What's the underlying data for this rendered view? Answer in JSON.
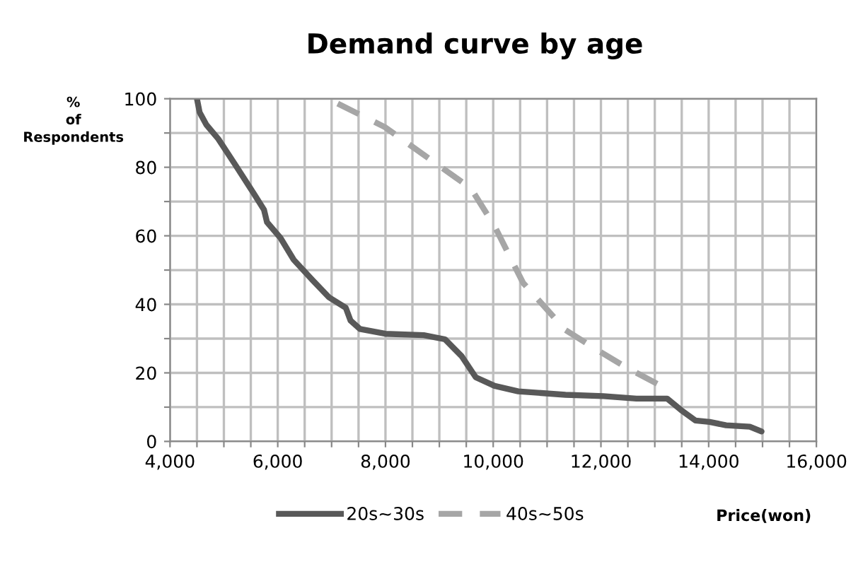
{
  "chart_data": {
    "type": "line",
    "title": "Demand curve by age",
    "xlabel": "Price(won)",
    "ylabel": "%\nof\nRespondents",
    "xlim": [
      4000,
      16000
    ],
    "ylim": [
      0,
      100
    ],
    "xticks": [
      {
        "value": 4000,
        "label": "4,000"
      },
      {
        "value": 4500,
        "label": null
      },
      {
        "value": 5000,
        "label": null
      },
      {
        "value": 5500,
        "label": null
      },
      {
        "value": 6000,
        "label": "6,000"
      },
      {
        "value": 6500,
        "label": null
      },
      {
        "value": 7000,
        "label": null
      },
      {
        "value": 7500,
        "label": null
      },
      {
        "value": 8000,
        "label": "8,000"
      },
      {
        "value": 8500,
        "label": null
      },
      {
        "value": 9000,
        "label": null
      },
      {
        "value": 9500,
        "label": null
      },
      {
        "value": 10000,
        "label": "10,000"
      },
      {
        "value": 10500,
        "label": null
      },
      {
        "value": 11000,
        "label": null
      },
      {
        "value": 11500,
        "label": null
      },
      {
        "value": 12000,
        "label": "12,000"
      },
      {
        "value": 12500,
        "label": null
      },
      {
        "value": 13000,
        "label": null
      },
      {
        "value": 13500,
        "label": null
      },
      {
        "value": 14000,
        "label": "14,000"
      },
      {
        "value": 14500,
        "label": null
      },
      {
        "value": 15000,
        "label": null
      },
      {
        "value": 15500,
        "label": null
      },
      {
        "value": 16000,
        "label": "16,000"
      }
    ],
    "yticks": [
      0,
      {
        "value": 10,
        "label": null
      },
      20,
      {
        "value": 30,
        "label": null
      },
      40,
      {
        "value": 50,
        "label": null
      },
      60,
      {
        "value": 70,
        "label": null
      },
      80,
      {
        "value": 90,
        "label": null
      },
      100
    ],
    "grid": true,
    "legend": "bottom",
    "marker": "none",
    "series": [
      {
        "name": "20s~30s",
        "color": "#595959",
        "line_style": "solid",
        "x": [
          4500,
          4550,
          4675,
          4895,
          5200,
          5553,
          5745,
          5800,
          6050,
          6297,
          6650,
          6955,
          7263,
          7350,
          7526,
          8000,
          8710,
          9105,
          9413,
          9676,
          10026,
          10465,
          11342,
          12044,
          12658,
          13228,
          13492,
          13755,
          14018,
          14324,
          14763,
          14982
        ],
        "values": [
          100,
          96,
          92.4,
          88.3,
          81,
          72.4,
          67.6,
          64,
          59.4,
          53,
          47,
          42,
          39,
          35.3,
          32.8,
          31.4,
          31,
          29.8,
          24.9,
          18.7,
          16.2,
          14.6,
          13.6,
          13.2,
          12.5,
          12.5,
          9.1,
          6.1,
          5.7,
          4.7,
          4.3,
          2.9
        ]
      },
      {
        "name": "40s~50s",
        "color": "#a6a6a6",
        "line_style": "dashed",
        "x": [
          7113,
          7990,
          8974,
          9588,
          10026,
          10553,
          11342,
          12044,
          12482,
          13228
        ],
        "values": [
          98.6,
          91.7,
          80.7,
          73.8,
          62.8,
          46.3,
          32.5,
          25.6,
          21.5,
          15.3
        ]
      }
    ]
  }
}
